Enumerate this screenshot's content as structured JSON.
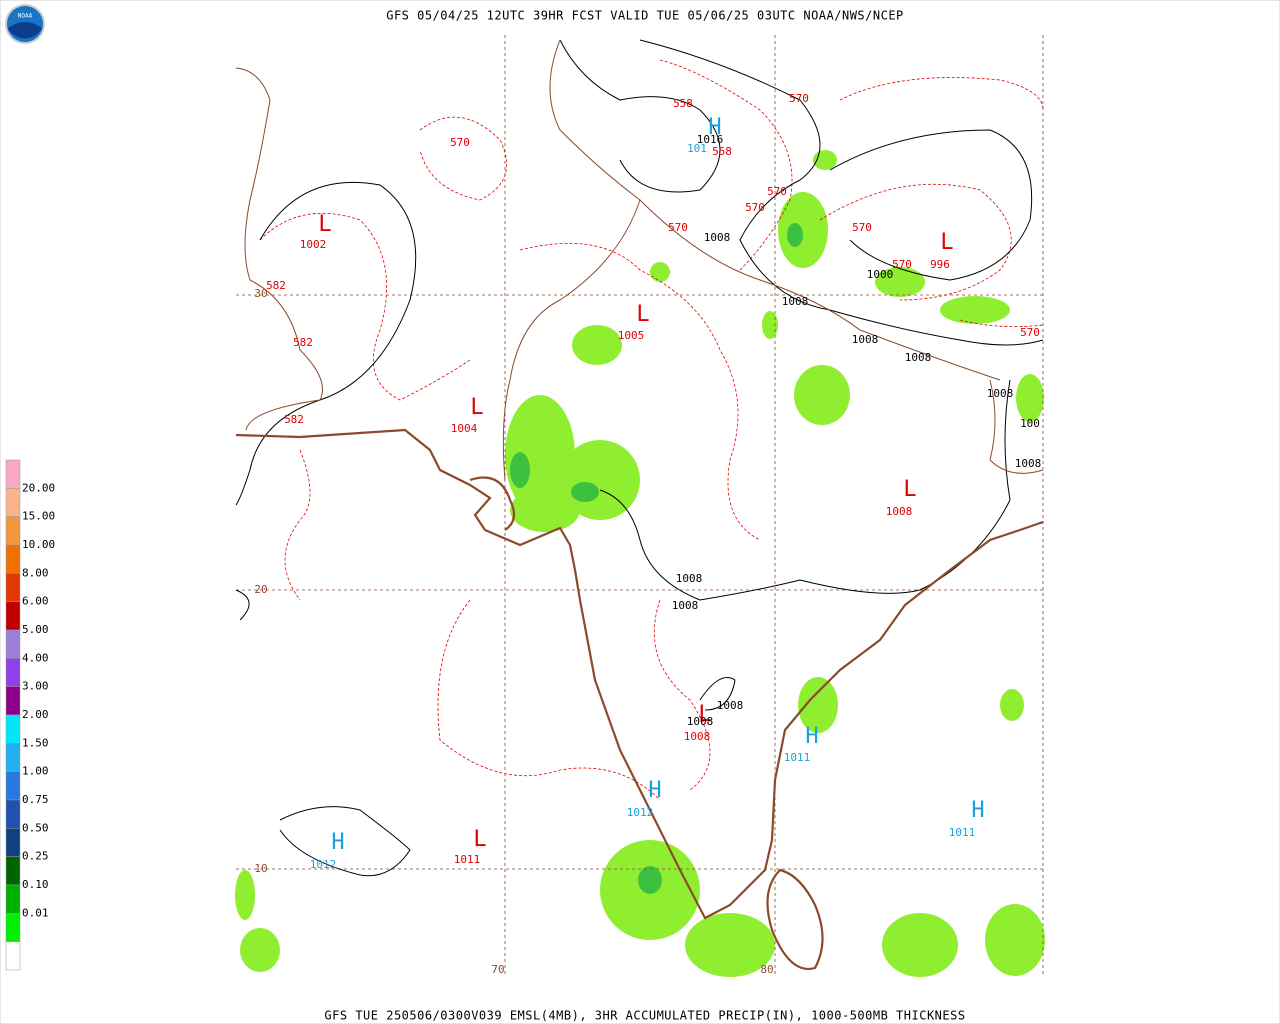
{
  "header": {
    "title": "GFS 05/04/25 12UTC 39HR FCST VALID TUE 05/06/25 03UTC NOAA/NWS/NCEP"
  },
  "footer": {
    "caption": "GFS TUE 250506/0300V039 EMSL(4MB), 3HR ACCUMULATED PRECIP(IN), 1000-500MB THICKNESS"
  },
  "logo": {
    "text": "NOAA"
  },
  "legend": {
    "labels": [
      "20.00",
      "15.00",
      "10.00",
      "8.00",
      "6.00",
      "5.00",
      "4.00",
      "3.00",
      "2.00",
      "1.50",
      "1.00",
      "0.75",
      "0.50",
      "0.25",
      "0.10",
      "0.01"
    ],
    "colors": [
      "#f8a8c0",
      "#f8b488",
      "#f09840",
      "#f07000",
      "#e03800",
      "#c00000",
      "#9c80d8",
      "#9040e8",
      "#8a008a",
      "#00e8f8",
      "#20b0f0",
      "#2878e0",
      "#2050b0",
      "#104080",
      "#006400",
      "#00b000",
      "#00f000",
      "#ffffff"
    ]
  },
  "grid_labels": [
    "30",
    "20",
    "10",
    "70",
    "80"
  ],
  "systems": [
    {
      "symbol": "L",
      "pressure": "1002"
    },
    {
      "symbol": "L",
      "pressure": "1005"
    },
    {
      "symbol": "L",
      "pressure": "1004"
    },
    {
      "symbol": "L",
      "pressure": "1008"
    },
    {
      "symbol": "L",
      "pressure": "996"
    },
    {
      "symbol": "L",
      "pressure": "1008"
    },
    {
      "symbol": "L",
      "pressure": "1011"
    },
    {
      "symbol": "H",
      "pressure": "101"
    },
    {
      "symbol": "H",
      "pressure": "1011"
    },
    {
      "symbol": "H",
      "pressure": "1012"
    },
    {
      "symbol": "H",
      "pressure": "1011"
    },
    {
      "symbol": "H",
      "pressure": "1012"
    }
  ],
  "thickness_labels": [
    "558",
    "558",
    "570",
    "570",
    "570",
    "570",
    "570",
    "570",
    "570",
    "570",
    "582",
    "582",
    "582"
  ],
  "isobar_labels": [
    "1016",
    "1008",
    "1000",
    "1008",
    "1008",
    "1008",
    "1008",
    "100",
    "1008",
    "1008",
    "1008",
    "1008",
    "1008"
  ]
}
